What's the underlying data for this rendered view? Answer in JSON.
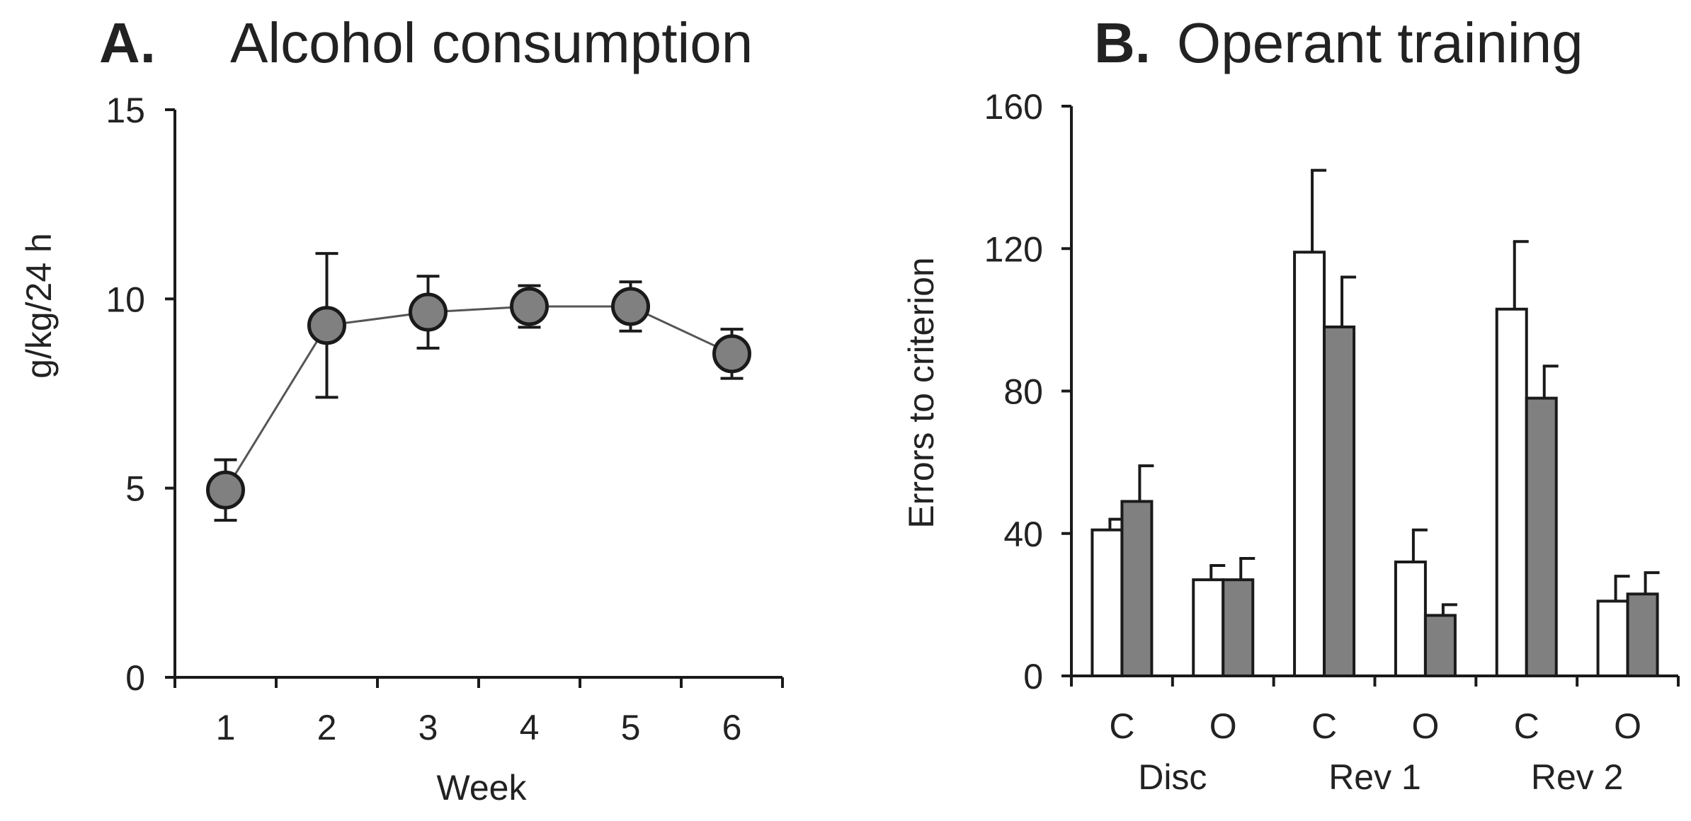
{
  "chart_data": [
    {
      "panel_letter": "A.",
      "title": "Alcohol consumption",
      "type": "line",
      "xlabel": "Week",
      "ylabel": "g/kg/24 h",
      "x": [
        "1",
        "2",
        "3",
        "4",
        "5",
        "6"
      ],
      "values": [
        4.95,
        9.3,
        9.65,
        9.8,
        9.8,
        8.55
      ],
      "errors": [
        0.8,
        1.9,
        0.95,
        0.55,
        0.65,
        0.65
      ],
      "ylim": [
        0,
        15
      ],
      "yticks": [
        "0",
        "5",
        "10",
        "15"
      ],
      "marker_color": "#808080",
      "line_color": "#555555",
      "grid": false
    },
    {
      "panel_letter": "B.",
      "title": "Operant training",
      "type": "bar",
      "xlabel": "",
      "ylabel": "Errors to criterion",
      "categories": [
        "C",
        "O",
        "C",
        "O",
        "C",
        "O"
      ],
      "groups": [
        "Disc",
        "Rev 1",
        "Rev 2"
      ],
      "series": [
        {
          "values": [
            41,
            27,
            119,
            32,
            103,
            21
          ],
          "errors": [
            3,
            4,
            23,
            9,
            19,
            7
          ],
          "color": "#ffffff"
        },
        {
          "values": [
            49,
            27,
            98,
            17,
            78,
            23
          ],
          "errors": [
            10,
            6,
            14,
            3,
            9,
            6
          ],
          "color": "#808080"
        }
      ],
      "ylim": [
        0,
        160
      ],
      "yticks": [
        "0",
        "40",
        "80",
        "120",
        "160"
      ],
      "grid": false
    }
  ]
}
